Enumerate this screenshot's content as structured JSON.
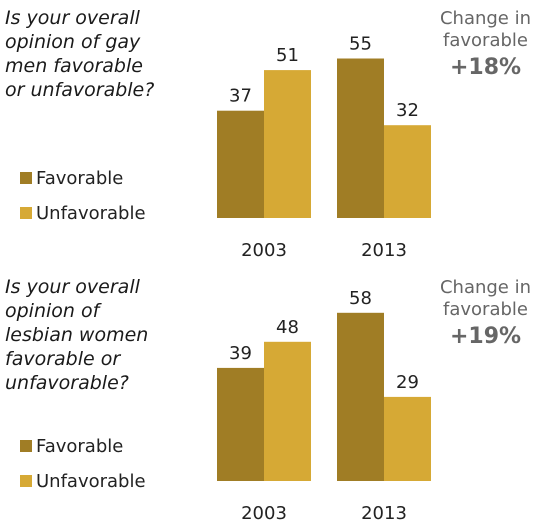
{
  "colors": {
    "favorable": "#a07d25",
    "unfavorable": "#d6a935"
  },
  "panels": [
    {
      "question": "Is your overall\nopinion of gay\nmen favorable\nor unfavorable?",
      "legend": [
        "Favorable",
        "Unfavorable"
      ],
      "change_label": "Change in\nfavorable",
      "change_value": "+18%"
    },
    {
      "question": "Is your overall\nopinion of\nlesbian women\nfavorable or\nunfavorable?",
      "legend": [
        "Favorable",
        "Unfavorable"
      ],
      "change_label": "Change in\nfavorable",
      "change_value": "+19%"
    }
  ],
  "chart_data": [
    {
      "type": "bar",
      "categories": [
        "2003",
        "2013"
      ],
      "series": [
        {
          "name": "Favorable",
          "values": [
            37,
            55
          ]
        },
        {
          "name": "Unfavorable",
          "values": [
            51,
            32
          ]
        }
      ],
      "title": "Is your overall opinion of gay men favorable or unfavorable?",
      "ylim": [
        0,
        60
      ],
      "grid": false,
      "legend_position": "left"
    },
    {
      "type": "bar",
      "categories": [
        "2003",
        "2013"
      ],
      "series": [
        {
          "name": "Favorable",
          "values": [
            39,
            58
          ]
        },
        {
          "name": "Unfavorable",
          "values": [
            48,
            29
          ]
        }
      ],
      "title": "Is your overall opinion of lesbian women favorable or unfavorable?",
      "ylim": [
        0,
        60
      ],
      "grid": false,
      "legend_position": "left"
    }
  ]
}
